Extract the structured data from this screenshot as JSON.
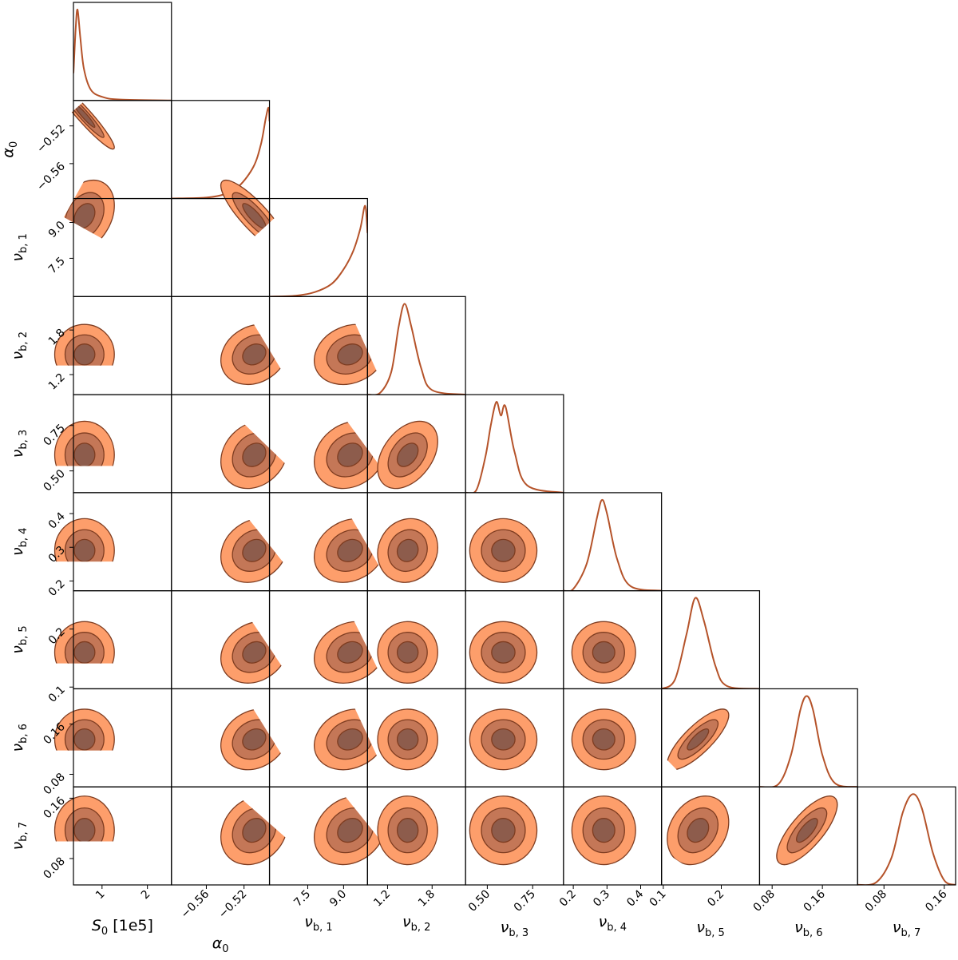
{
  "chart_data": {
    "type": "corner",
    "line_color": "#b5532a",
    "level_colors": [
      "#fd9e6b",
      "#c47757",
      "#8d5c4c"
    ],
    "edge_color": "#7e3c20",
    "density_ylim": [
      0,
      1.08
    ],
    "parameters": [
      {
        "label": {
          "symbol": "S",
          "subscript": "0",
          "suffix": "[1e5]"
        },
        "lim": [
          0.37,
          2.53
        ],
        "ticks": [
          1,
          2
        ],
        "marginal": {
          "x": [
            0.37,
            0.42,
            0.46,
            0.52,
            0.6,
            0.75,
            1.0,
            1.4,
            2.53
          ],
          "density": [
            0.3,
            0.8,
            1.0,
            0.7,
            0.35,
            0.12,
            0.04,
            0.01,
            0
          ]
        }
      },
      {
        "label": {
          "symbol": "α",
          "subscript": "0"
        },
        "lim": [
          -0.597,
          -0.493
        ],
        "ticks": [
          {
            "value": -0.56,
            "label": "−0.56"
          },
          {
            "value": -0.52,
            "label": "−0.52"
          }
        ],
        "marginal": {
          "x": [
            -0.597,
            -0.56,
            -0.54,
            -0.525,
            -0.51,
            -0.502,
            -0.497,
            -0.494,
            -0.493
          ],
          "density": [
            0,
            0.01,
            0.05,
            0.14,
            0.35,
            0.6,
            0.88,
            1.0,
            0.85
          ]
        }
      },
      {
        "label": {
          "symbol": "ν",
          "subscript": "b, 1"
        },
        "lim": [
          5.9,
          10.0
        ],
        "ticks": [
          7.5,
          {
            "value": 9,
            "label": "9.0"
          }
        ],
        "marginal": {
          "x": [
            5.9,
            7.0,
            7.8,
            8.5,
            9.0,
            9.4,
            9.7,
            9.9,
            10.0
          ],
          "density": [
            0,
            0.01,
            0.05,
            0.14,
            0.3,
            0.5,
            0.75,
            1.0,
            0.7
          ]
        }
      },
      {
        "label": {
          "symbol": "ν",
          "subscript": "b, 2"
        },
        "lim": [
          0.93,
          2.25
        ],
        "ticks": [
          1.2,
          1.8
        ],
        "marginal": {
          "x": [
            0.93,
            1.1,
            1.25,
            1.35,
            1.43,
            1.52,
            1.65,
            1.8,
            2.25
          ],
          "density": [
            0,
            0.02,
            0.25,
            0.75,
            1.0,
            0.75,
            0.3,
            0.05,
            0
          ]
        }
      },
      {
        "label": {
          "symbol": "ν",
          "subscript": "b, 3"
        },
        "lim": [
          0.38,
          0.92
        ],
        "ticks": [
          {
            "value": 0.5,
            "label": "0.50"
          },
          0.75
        ],
        "marginal": {
          "x": [
            0.38,
            0.44,
            0.49,
            0.52,
            0.55,
            0.575,
            0.6,
            0.65,
            0.72,
            0.92
          ],
          "density": [
            0,
            0.03,
            0.4,
            0.75,
            1.0,
            0.85,
            0.95,
            0.45,
            0.08,
            0
          ]
        }
      },
      {
        "label": {
          "symbol": "ν",
          "subscript": "b, 4"
        },
        "lim": [
          0.171,
          0.462
        ],
        "ticks": [
          0.2,
          0.3,
          0.4
        ],
        "marginal": {
          "x": [
            0.171,
            0.2,
            0.24,
            0.27,
            0.285,
            0.3,
            0.33,
            0.37,
            0.462
          ],
          "density": [
            0,
            0.02,
            0.3,
            0.8,
            1.0,
            0.85,
            0.35,
            0.05,
            0
          ]
        }
      },
      {
        "label": {
          "symbol": "ν",
          "subscript": "b, 5"
        },
        "lim": [
          0.097,
          0.266
        ],
        "ticks": [
          0.1,
          0.2
        ],
        "marginal": {
          "x": [
            0.097,
            0.12,
            0.14,
            0.155,
            0.17,
            0.19,
            0.21,
            0.266
          ],
          "density": [
            0,
            0.1,
            0.6,
            1.0,
            0.75,
            0.25,
            0.03,
            0
          ]
        }
      },
      {
        "label": {
          "symbol": "ν",
          "subscript": "b, 6"
        },
        "lim": [
          0.06,
          0.216
        ],
        "ticks": [
          0.08,
          0.16
        ],
        "marginal": {
          "x": [
            0.06,
            0.09,
            0.11,
            0.125,
            0.135,
            0.145,
            0.16,
            0.18,
            0.216
          ],
          "density": [
            0,
            0.03,
            0.35,
            0.85,
            1.0,
            0.85,
            0.35,
            0.04,
            0
          ]
        }
      },
      {
        "label": {
          "symbol": "ν",
          "subscript": "b, 7"
        },
        "lim": [
          0.045,
          0.175
        ],
        "ticks": [
          0.08,
          0.16
        ],
        "marginal": {
          "x": [
            0.045,
            0.07,
            0.09,
            0.105,
            0.118,
            0.13,
            0.145,
            0.16,
            0.175
          ],
          "density": [
            0,
            0.03,
            0.3,
            0.8,
            1.0,
            0.85,
            0.35,
            0.05,
            0
          ]
        }
      }
    ],
    "correlations": [
      [],
      [
        -0.95
      ],
      [
        0.3,
        -0.85
      ],
      [
        0,
        0.2,
        0.2
      ],
      [
        0,
        0.2,
        0.2,
        0.4
      ],
      [
        0,
        0.2,
        0.2,
        0.1,
        0
      ],
      [
        0,
        0.2,
        0.2,
        0,
        0,
        0
      ],
      [
        0,
        0.2,
        0.2,
        0,
        0,
        0,
        0.8
      ],
      [
        0,
        0.2,
        0.2,
        0,
        0,
        0,
        0.25,
        0.75
      ]
    ]
  }
}
